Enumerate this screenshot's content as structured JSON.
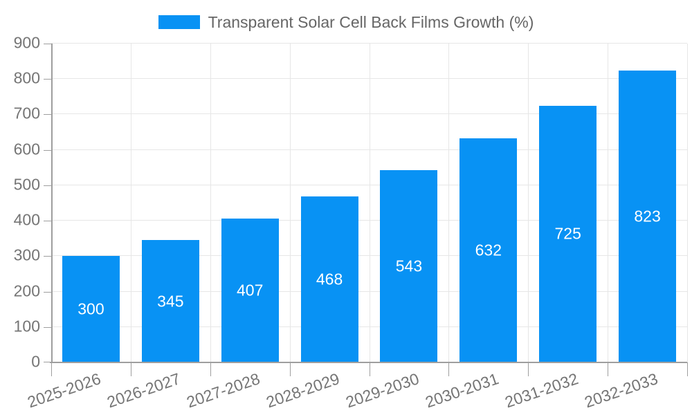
{
  "chart_data": {
    "type": "bar",
    "title": "Transparent Solar Cell Back Films Growth (%)",
    "categories": [
      "2025-2026",
      "2026-2027",
      "2027-2028",
      "2028-2029",
      "2029-2030",
      "2030-2031",
      "2031-2032",
      "2032-2033"
    ],
    "values": [
      300,
      345,
      407,
      468,
      543,
      632,
      725,
      823
    ],
    "xlabel": "",
    "ylabel": "",
    "ylim": [
      0,
      900
    ],
    "yticks": [
      0,
      100,
      200,
      300,
      400,
      500,
      600,
      700,
      800,
      900
    ],
    "grid": true,
    "legend_position": "top",
    "bar_value_labels_visible": true
  },
  "legend": {
    "items": [
      {
        "label": "Transparent Solar Cell Back Films Growth (%)",
        "color": "#0892f4"
      }
    ]
  },
  "colors": {
    "bar": "#0892f4",
    "grid": "#e6e6e6",
    "axis": "#9e9e9e",
    "tick_label": "#757575",
    "bar_value_label": "#ffffff",
    "legend_text": "#666666",
    "background": "#ffffff"
  }
}
